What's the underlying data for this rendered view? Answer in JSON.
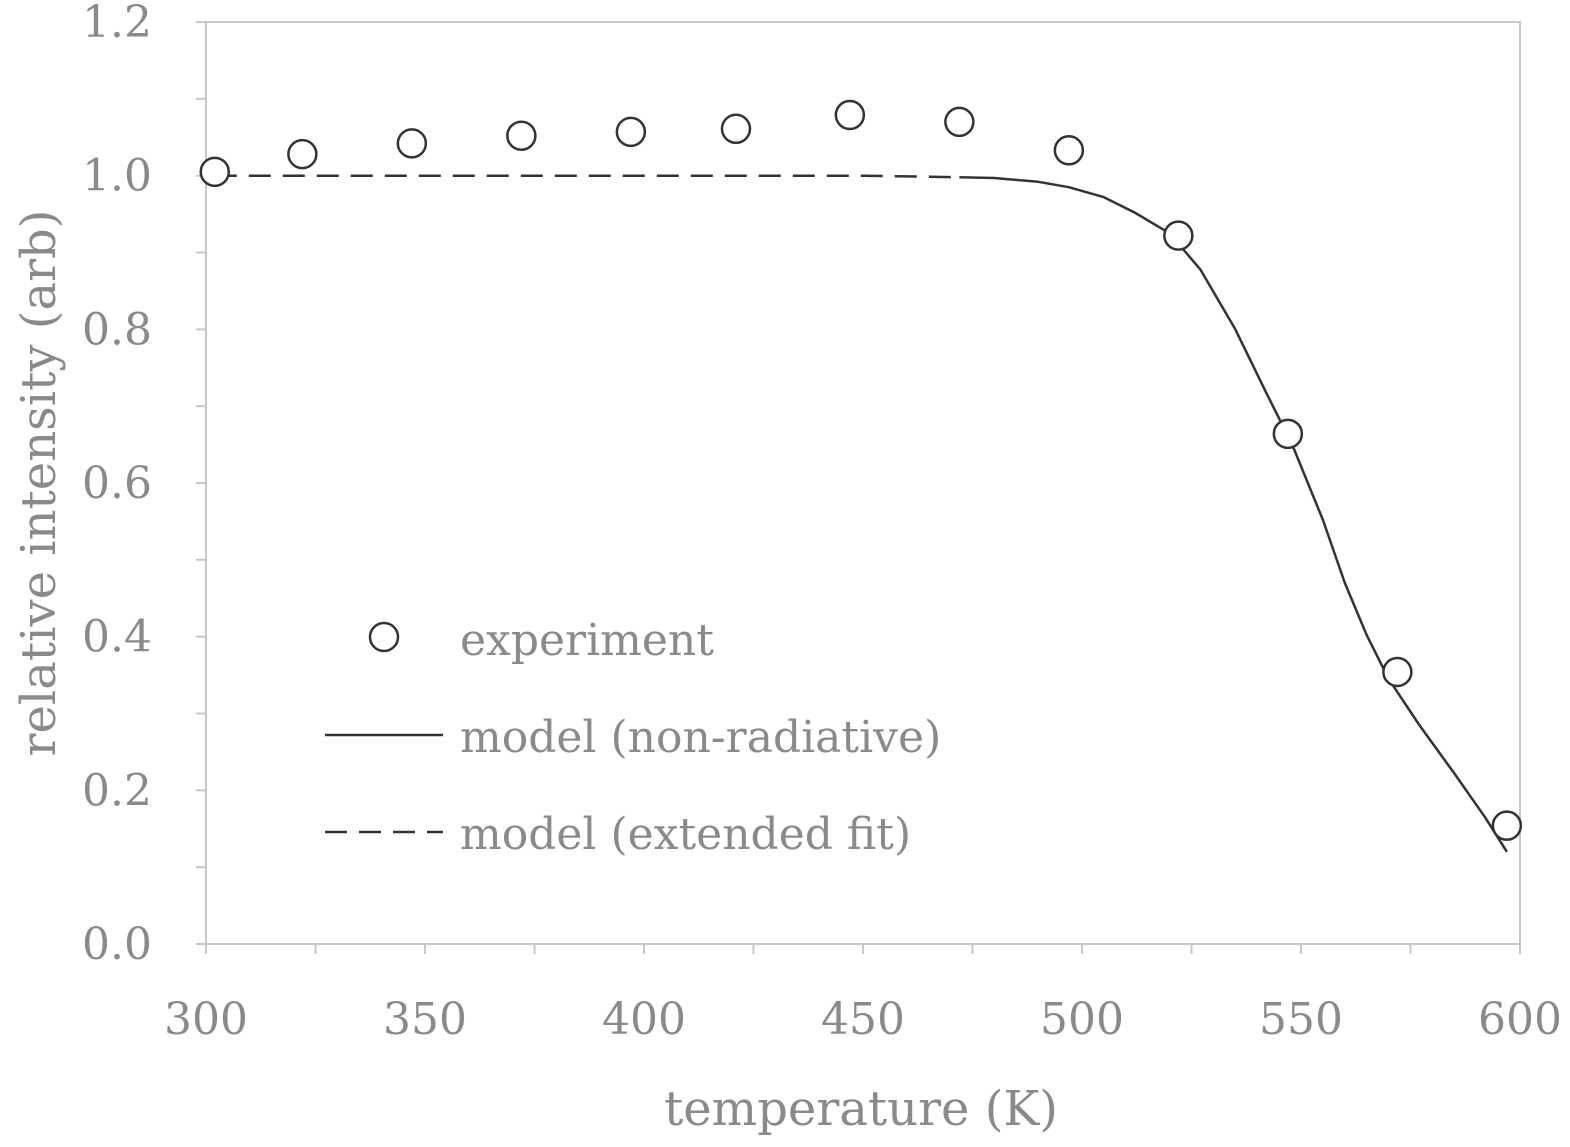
{
  "chart_data": {
    "type": "scatter",
    "title": "",
    "xlabel": "temperature (K)",
    "ylabel": "relative intensity (arb)",
    "xlim": [
      300,
      600
    ],
    "ylim": [
      0.0,
      1.2
    ],
    "x_ticks": [
      "300",
      "350",
      "400",
      "450",
      "500",
      "550",
      "600"
    ],
    "y_ticks": [
      "0.0",
      "0.2",
      "0.4",
      "0.6",
      "0.8",
      "1.0",
      "1.2"
    ],
    "grid": false,
    "legend_position": "bottom-left",
    "series": [
      {
        "name": "experiment",
        "kind": "scatter",
        "marker": "open-circle",
        "x": [
          302,
          322,
          347,
          372,
          397,
          421,
          447,
          472,
          497,
          522,
          547,
          572,
          597
        ],
        "y": [
          1.005,
          1.028,
          1.042,
          1.052,
          1.057,
          1.061,
          1.079,
          1.07,
          1.033,
          0.922,
          0.664,
          0.354,
          0.154
        ]
      },
      {
        "name": "model (non-radiative)",
        "kind": "line",
        "style": "solid",
        "x": [
          472,
          480,
          490,
          497,
          505,
          512,
          520,
          527,
          535,
          542,
          548,
          555,
          560,
          565,
          570,
          577,
          585,
          592,
          597
        ],
        "y": [
          0.998,
          0.997,
          0.992,
          0.985,
          0.972,
          0.952,
          0.925,
          0.878,
          0.8,
          0.718,
          0.65,
          0.552,
          0.47,
          0.402,
          0.345,
          0.285,
          0.222,
          0.165,
          0.12
        ]
      },
      {
        "name": "model (extended fit)",
        "kind": "line",
        "style": "dashed",
        "x": [
          302,
          350,
          400,
          450,
          460,
          472
        ],
        "y": [
          1.0,
          1.0,
          1.0,
          1.0,
          0.999,
          0.998
        ]
      }
    ],
    "colors": {
      "axis": "#c8c8c8",
      "text": "#8a8a8a",
      "marks": "#333333"
    }
  }
}
